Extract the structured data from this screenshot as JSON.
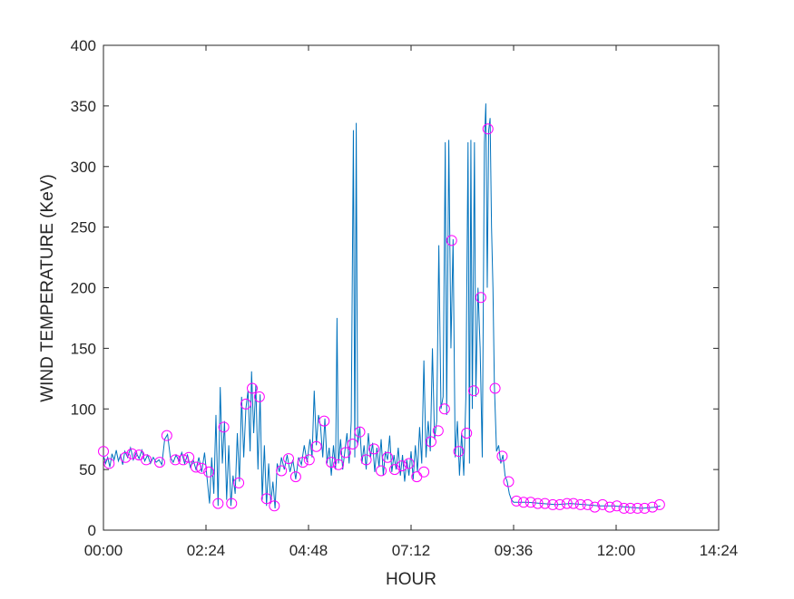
{
  "chart_data": {
    "type": "line",
    "xlabel": "HOUR",
    "ylabel": "WIND  TEMPERATURE (KeV)",
    "xlim": [
      "00:00",
      "14:24"
    ],
    "xticks": [
      "00:00",
      "02:24",
      "04:48",
      "07:12",
      "09:36",
      "12:00",
      "14:24"
    ],
    "ylim": [
      0,
      400
    ],
    "yticks": [
      0,
      50,
      100,
      150,
      200,
      250,
      300,
      350,
      400
    ],
    "grid": false,
    "box": true,
    "series": [
      {
        "color": "#0072bd",
        "linestyle": "solid",
        "marker": "none",
        "x": [
          "00:00",
          "00:03",
          "00:06",
          "00:09",
          "00:12",
          "00:15",
          "00:18",
          "00:21",
          "00:24",
          "00:27",
          "00:30",
          "00:34",
          "00:38",
          "00:42",
          "00:46",
          "00:50",
          "00:54",
          "00:58",
          "01:02",
          "01:06",
          "01:10",
          "01:14",
          "01:18",
          "01:22",
          "01:26",
          "01:30",
          "01:34",
          "01:38",
          "01:42",
          "01:46",
          "01:50",
          "01:54",
          "01:58",
          "02:02",
          "02:06",
          "02:10",
          "02:14",
          "02:18",
          "02:22",
          "02:26",
          "02:29",
          "02:32",
          "02:35",
          "02:38",
          "02:41",
          "02:44",
          "02:47",
          "02:50",
          "02:53",
          "02:56",
          "02:59",
          "03:02",
          "03:05",
          "03:08",
          "03:11",
          "03:14",
          "03:17",
          "03:20",
          "03:23",
          "03:26",
          "03:28",
          "03:31",
          "03:34",
          "03:37",
          "03:40",
          "03:43",
          "03:46",
          "03:49",
          "03:52",
          "03:55",
          "03:58",
          "04:01",
          "04:04",
          "04:07",
          "04:10",
          "04:14",
          "04:18",
          "04:22",
          "04:26",
          "04:30",
          "04:34",
          "04:38",
          "04:42",
          "04:46",
          "04:50",
          "04:53",
          "04:56",
          "04:59",
          "05:02",
          "05:05",
          "05:08",
          "05:11",
          "05:14",
          "05:17",
          "05:20",
          "05:23",
          "05:26",
          "05:28",
          "05:30",
          "05:33",
          "05:36",
          "05:39",
          "05:42",
          "05:45",
          "05:48",
          "05:51",
          "05:53",
          "05:55",
          "05:57",
          "06:00",
          "06:03",
          "06:06",
          "06:09",
          "06:12",
          "06:15",
          "06:18",
          "06:21",
          "06:24",
          "06:27",
          "06:30",
          "06:33",
          "06:36",
          "06:39",
          "06:42",
          "06:45",
          "06:48",
          "06:51",
          "06:54",
          "06:57",
          "07:00",
          "07:03",
          "07:06",
          "07:09",
          "07:12",
          "07:15",
          "07:18",
          "07:21",
          "07:24",
          "07:27",
          "07:30",
          "07:33",
          "07:36",
          "07:39",
          "07:42",
          "07:45",
          "07:48",
          "07:51",
          "07:54",
          "07:57",
          "08:00",
          "08:02",
          "08:05",
          "08:08",
          "08:11",
          "08:14",
          "08:17",
          "08:20",
          "08:23",
          "08:26",
          "08:29",
          "08:32",
          "08:34",
          "08:36",
          "08:38",
          "08:41",
          "08:43",
          "08:46",
          "08:49",
          "08:52",
          "08:55",
          "08:57",
          "08:59",
          "09:01",
          "09:03",
          "09:05",
          "09:07",
          "09:09",
          "09:12",
          "09:15",
          "09:18",
          "09:21",
          "09:24",
          "09:27",
          "09:30",
          "09:33",
          "09:36",
          "09:56",
          "10:16",
          "10:36",
          "10:56",
          "11:16",
          "11:36",
          "11:56",
          "12:16",
          "12:36",
          "12:56",
          "13:02"
        ],
        "values": [
          62,
          55,
          60,
          52,
          63,
          58,
          66,
          57,
          62,
          54,
          65,
          60,
          68,
          58,
          64,
          59,
          66,
          57,
          62,
          55,
          60,
          56,
          58,
          54,
          75,
          79,
          60,
          56,
          62,
          57,
          64,
          55,
          62,
          52,
          58,
          50,
          60,
          48,
          64,
          40,
          22,
          60,
          30,
          95,
          20,
          118,
          55,
          90,
          25,
          70,
          20,
          45,
          30,
          80,
          40,
          110,
          60,
          100,
          115,
          65,
          131,
          80,
          120,
          50,
          112,
          25,
          70,
          20,
          55,
          22,
          40,
          18,
          55,
          48,
          60,
          50,
          62,
          48,
          58,
          42,
          60,
          54,
          70,
          56,
          75,
          60,
          115,
          70,
          95,
          85,
          60,
          92,
          55,
          68,
          45,
          70,
          50,
          175,
          55,
          75,
          50,
          65,
          80,
          55,
          90,
          330,
          60,
          336,
          70,
          85,
          55,
          70,
          50,
          80,
          60,
          72,
          48,
          68,
          52,
          75,
          45,
          65,
          58,
          78,
          48,
          62,
          50,
          68,
          45,
          62,
          40,
          58,
          45,
          65,
          42,
          70,
          48,
          85,
          55,
          140,
          60,
          90,
          65,
          150,
          75,
          90,
          235,
          100,
          110,
          320,
          95,
          322,
          150,
          240,
          60,
          90,
          45,
          80,
          45,
          110,
          320,
          55,
          322,
          100,
          320,
          110,
          200,
          150,
          60,
          320,
          352,
          200,
          330,
          340,
          250,
          200,
          120,
          65,
          70,
          55,
          62,
          45,
          40,
          30,
          25,
          23,
          23,
          22,
          21,
          22,
          21,
          20,
          20,
          19,
          18,
          19,
          20
        ]
      },
      {
        "color": "#ff00ff",
        "linestyle": "none",
        "marker": "circle",
        "x": [
          "00:00",
          "00:08",
          "00:31",
          "00:40",
          "00:50",
          "01:00",
          "01:19",
          "01:29",
          "01:41",
          "01:52",
          "02:00",
          "02:10",
          "02:18",
          "02:28",
          "02:41",
          "02:49",
          "03:00",
          "03:10",
          "03:20",
          "03:29",
          "03:39",
          "03:49",
          "04:00",
          "04:10",
          "04:20",
          "04:30",
          "04:40",
          "04:49",
          "04:59",
          "05:10",
          "05:20",
          "05:30",
          "05:40",
          "05:50",
          "06:00",
          "06:09",
          "06:20",
          "06:30",
          "06:39",
          "06:49",
          "06:59",
          "07:09",
          "07:20",
          "07:30",
          "07:40",
          "07:50",
          "07:59",
          "08:09",
          "08:19",
          "08:30",
          "08:40",
          "08:50",
          "09:00",
          "09:10",
          "09:20",
          "09:29",
          "09:40",
          "09:50",
          "10:00",
          "10:10",
          "10:20",
          "10:31",
          "10:41",
          "10:51",
          "11:00",
          "11:10",
          "11:20",
          "11:30",
          "11:41",
          "11:51",
          "12:01",
          "12:11",
          "12:20",
          "12:30",
          "12:40",
          "12:51",
          "13:01"
        ],
        "values": [
          65,
          55,
          60,
          63,
          62,
          58,
          56,
          78,
          58,
          58,
          60,
          52,
          51,
          48,
          22,
          85,
          22,
          39,
          104,
          117,
          110,
          26,
          20,
          49,
          59,
          44,
          56,
          58,
          69,
          90,
          56,
          54,
          64,
          71,
          81,
          58,
          67,
          49,
          60,
          50,
          53,
          55,
          44,
          48,
          73,
          82,
          100,
          239,
          65,
          80,
          115,
          192,
          331,
          117,
          61,
          40,
          24,
          23,
          23,
          22,
          22,
          21,
          21,
          22,
          22,
          21,
          21,
          19,
          21,
          19,
          20,
          18,
          18,
          18,
          18,
          19,
          21
        ]
      }
    ]
  }
}
